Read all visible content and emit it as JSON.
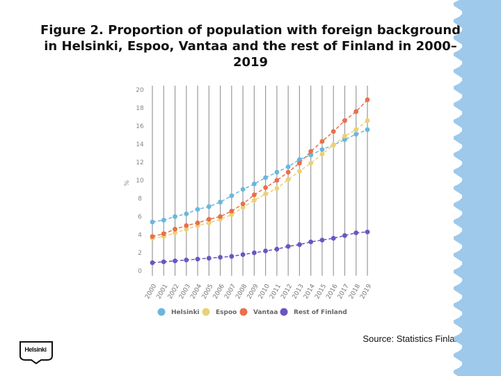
{
  "title": "Figure 2. Proportion of population with foreign background in Helsinki, Espoo, Vantaa and the rest of Finland in 2000–2019",
  "source": "Source: Statistics Finland",
  "logo_text": "Helsinki",
  "colors": {
    "Helsinki": "#6bb7dc",
    "Espoo": "#ecd077",
    "Vantaa": "#e8704a",
    "Rest of Finland": "#6c55c1",
    "grid": "#9a9a9a",
    "edge": "#9ec9ea"
  },
  "chart_data": {
    "type": "line",
    "title": "Figure 2. Proportion of population with foreign background in Helsinki, Espoo, Vantaa and the rest of Finland in 2000–2019",
    "xlabel": "",
    "ylabel": "%",
    "ylim": [
      0,
      20
    ],
    "yticks": [
      0,
      2,
      4,
      6,
      8,
      10,
      12,
      14,
      16,
      18,
      20
    ],
    "grid": "vertical",
    "legend": "bottom",
    "categories": [
      "2000",
      "2001",
      "2002",
      "2003",
      "2004",
      "2005",
      "2006",
      "2007",
      "2008",
      "2009",
      "2010",
      "2011",
      "2012",
      "2013",
      "2014",
      "2015",
      "2016",
      "2017",
      "2018",
      "2019"
    ],
    "series": [
      {
        "name": "Helsinki",
        "values": [
          5.4,
          5.6,
          6.0,
          6.3,
          6.8,
          7.1,
          7.6,
          8.3,
          9.0,
          9.6,
          10.3,
          10.9,
          11.5,
          12.3,
          12.8,
          13.4,
          13.9,
          14.5,
          15.1,
          15.6
        ]
      },
      {
        "name": "Espoo",
        "values": [
          3.6,
          3.8,
          4.2,
          4.6,
          5.0,
          5.3,
          5.7,
          6.2,
          7.0,
          7.8,
          8.5,
          9.1,
          10.1,
          11.0,
          11.9,
          12.9,
          13.9,
          14.9,
          15.6,
          16.6
        ]
      },
      {
        "name": "Vantaa",
        "values": [
          3.8,
          4.1,
          4.6,
          5.0,
          5.3,
          5.7,
          6.0,
          6.6,
          7.4,
          8.4,
          9.2,
          10.0,
          10.9,
          11.9,
          13.2,
          14.3,
          15.4,
          16.6,
          17.6,
          18.9
        ]
      },
      {
        "name": "Rest of Finland",
        "values": [
          0.9,
          1.0,
          1.1,
          1.2,
          1.3,
          1.4,
          1.5,
          1.6,
          1.8,
          2.0,
          2.2,
          2.4,
          2.7,
          2.9,
          3.2,
          3.4,
          3.6,
          3.9,
          4.2,
          4.3
        ]
      }
    ]
  }
}
